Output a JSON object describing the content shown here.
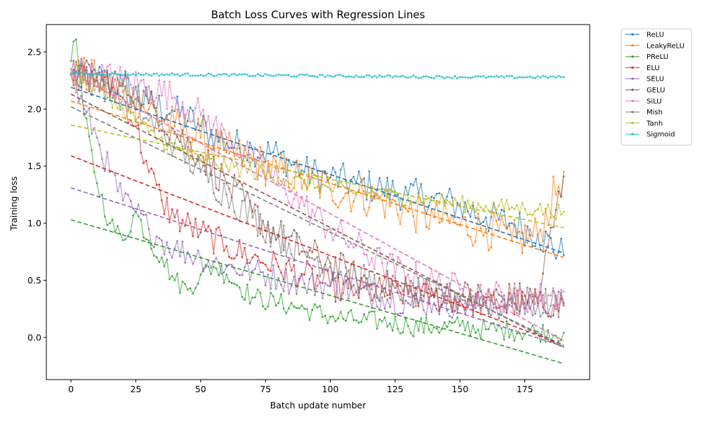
{
  "chart_data": {
    "type": "line",
    "title": "Batch Loss Curves with Regression Lines",
    "xlabel": "Batch update number",
    "ylabel": "Training loss",
    "xlim": [
      -9.5,
      200
    ],
    "ylim": [
      -0.37,
      2.74
    ],
    "xticks": [
      0,
      25,
      50,
      75,
      100,
      125,
      150,
      175
    ],
    "yticks": [
      0.0,
      0.5,
      1.0,
      1.5,
      2.0,
      2.5
    ],
    "ytick_labels": [
      "0.0",
      "0.5",
      "1.0",
      "1.5",
      "2.0",
      "2.5"
    ],
    "grid": false,
    "legend_position": "outside-top-right",
    "x_max": 190,
    "series": [
      {
        "name": "ReLU",
        "color": "#1f77b4",
        "points": [
          [
            0,
            2.3
          ],
          [
            10,
            2.28
          ],
          [
            20,
            2.2
          ],
          [
            30,
            2.05
          ],
          [
            40,
            1.98
          ],
          [
            50,
            1.85
          ],
          [
            60,
            1.7
          ],
          [
            70,
            1.65
          ],
          [
            80,
            1.6
          ],
          [
            90,
            1.45
          ],
          [
            100,
            1.4
          ],
          [
            110,
            1.35
          ],
          [
            120,
            1.3
          ],
          [
            130,
            1.25
          ],
          [
            140,
            1.22
          ],
          [
            150,
            1.15
          ],
          [
            160,
            1.05
          ],
          [
            170,
            1.0
          ],
          [
            180,
            0.9
          ],
          [
            190,
            0.72
          ]
        ],
        "noise": 0.15,
        "regression": [
          2.19,
          0.74
        ]
      },
      {
        "name": "LeakyReLU",
        "color": "#ff7f0e",
        "points": [
          [
            0,
            2.3
          ],
          [
            10,
            2.25
          ],
          [
            20,
            2.15
          ],
          [
            30,
            2.0
          ],
          [
            40,
            1.85
          ],
          [
            50,
            1.75
          ],
          [
            60,
            1.62
          ],
          [
            70,
            1.55
          ],
          [
            80,
            1.45
          ],
          [
            90,
            1.38
          ],
          [
            100,
            1.3
          ],
          [
            110,
            1.25
          ],
          [
            120,
            1.2
          ],
          [
            130,
            1.1
          ],
          [
            140,
            1.05
          ],
          [
            150,
            0.98
          ],
          [
            160,
            0.95
          ],
          [
            170,
            0.85
          ],
          [
            180,
            0.9
          ],
          [
            190,
            1.45
          ]
        ],
        "noise": 0.18,
        "regression": [
          2.07,
          0.7
        ]
      },
      {
        "name": "PReLU",
        "color": "#2ca02c",
        "points": [
          [
            0,
            2.42
          ],
          [
            2,
            2.61
          ],
          [
            5,
            1.95
          ],
          [
            10,
            1.35
          ],
          [
            15,
            1.0
          ],
          [
            20,
            0.85
          ],
          [
            25,
            1.1
          ],
          [
            30,
            0.85
          ],
          [
            35,
            0.7
          ],
          [
            40,
            0.5
          ],
          [
            45,
            0.42
          ],
          [
            50,
            0.55
          ],
          [
            55,
            0.62
          ],
          [
            60,
            0.55
          ],
          [
            70,
            0.35
          ],
          [
            80,
            0.3
          ],
          [
            90,
            0.25
          ],
          [
            100,
            0.18
          ],
          [
            110,
            0.15
          ],
          [
            120,
            0.14
          ],
          [
            130,
            0.1
          ],
          [
            140,
            0.09
          ],
          [
            150,
            0.1
          ],
          [
            160,
            0.07
          ],
          [
            170,
            0.06
          ],
          [
            180,
            0.05
          ],
          [
            190,
            0.04
          ]
        ],
        "noise": 0.09,
        "regression": [
          1.03,
          -0.23
        ]
      },
      {
        "name": "ELU",
        "color": "#d62728",
        "points": [
          [
            0,
            2.3
          ],
          [
            10,
            2.25
          ],
          [
            20,
            2.1
          ],
          [
            25,
            1.85
          ],
          [
            30,
            1.45
          ],
          [
            35,
            1.2
          ],
          [
            40,
            1.05
          ],
          [
            50,
            0.92
          ],
          [
            60,
            0.8
          ],
          [
            70,
            0.7
          ],
          [
            80,
            0.62
          ],
          [
            90,
            0.55
          ],
          [
            100,
            0.45
          ],
          [
            110,
            0.4
          ],
          [
            120,
            0.4
          ],
          [
            130,
            0.38
          ],
          [
            140,
            0.35
          ],
          [
            150,
            0.32
          ],
          [
            160,
            0.3
          ],
          [
            170,
            0.3
          ],
          [
            180,
            0.3
          ],
          [
            190,
            0.28
          ]
        ],
        "noise": 0.13,
        "regression": [
          1.59,
          -0.07
        ]
      },
      {
        "name": "SELU",
        "color": "#9467bd",
        "points": [
          [
            0,
            2.3
          ],
          [
            5,
            2.0
          ],
          [
            10,
            1.75
          ],
          [
            15,
            1.45
          ],
          [
            20,
            1.2
          ],
          [
            25,
            1.1
          ],
          [
            30,
            0.95
          ],
          [
            35,
            0.85
          ],
          [
            40,
            0.78
          ],
          [
            50,
            0.7
          ],
          [
            60,
            0.62
          ],
          [
            70,
            0.58
          ],
          [
            80,
            0.52
          ],
          [
            90,
            0.47
          ],
          [
            100,
            0.45
          ],
          [
            110,
            0.4
          ],
          [
            120,
            0.35
          ],
          [
            130,
            0.3
          ],
          [
            140,
            0.3
          ],
          [
            150,
            0.28
          ],
          [
            160,
            0.28
          ],
          [
            170,
            0.27
          ],
          [
            180,
            0.28
          ],
          [
            190,
            0.3
          ]
        ],
        "noise": 0.12,
        "regression": [
          1.31,
          -0.08
        ]
      },
      {
        "name": "GELU",
        "color": "#8c564b",
        "points": [
          [
            0,
            2.3
          ],
          [
            10,
            2.28
          ],
          [
            20,
            2.22
          ],
          [
            30,
            2.05
          ],
          [
            40,
            1.8
          ],
          [
            50,
            1.6
          ],
          [
            60,
            1.35
          ],
          [
            70,
            1.1
          ],
          [
            80,
            0.9
          ],
          [
            90,
            0.75
          ],
          [
            100,
            0.65
          ],
          [
            110,
            0.52
          ],
          [
            120,
            0.45
          ],
          [
            130,
            0.4
          ],
          [
            140,
            0.38
          ],
          [
            150,
            0.36
          ],
          [
            160,
            0.35
          ],
          [
            170,
            0.34
          ],
          [
            180,
            0.34
          ],
          [
            190,
            1.41
          ]
        ],
        "noise": 0.15,
        "regression": [
          2.13,
          -0.09
        ]
      },
      {
        "name": "SiLU",
        "color": "#e377c2",
        "points": [
          [
            0,
            2.35
          ],
          [
            10,
            2.3
          ],
          [
            20,
            2.25
          ],
          [
            30,
            2.2
          ],
          [
            40,
            2.1
          ],
          [
            50,
            1.95
          ],
          [
            60,
            1.75
          ],
          [
            70,
            1.55
          ],
          [
            80,
            1.35
          ],
          [
            90,
            1.15
          ],
          [
            100,
            0.95
          ],
          [
            110,
            0.8
          ],
          [
            120,
            0.65
          ],
          [
            130,
            0.55
          ],
          [
            140,
            0.48
          ],
          [
            150,
            0.42
          ],
          [
            160,
            0.38
          ],
          [
            170,
            0.35
          ],
          [
            180,
            0.35
          ],
          [
            190,
            0.4
          ]
        ],
        "noise": 0.14,
        "regression": [
          2.32,
          -0.03
        ]
      },
      {
        "name": "Mish",
        "color": "#7f7f7f",
        "points": [
          [
            0,
            2.3
          ],
          [
            10,
            2.25
          ],
          [
            20,
            2.1
          ],
          [
            30,
            1.9
          ],
          [
            40,
            1.7
          ],
          [
            50,
            1.45
          ],
          [
            60,
            1.25
          ],
          [
            70,
            1.05
          ],
          [
            80,
            0.88
          ],
          [
            90,
            0.75
          ],
          [
            100,
            0.62
          ],
          [
            110,
            0.52
          ],
          [
            120,
            0.45
          ],
          [
            130,
            0.4
          ],
          [
            140,
            0.36
          ],
          [
            150,
            0.34
          ],
          [
            160,
            0.32
          ],
          [
            170,
            0.3
          ],
          [
            180,
            0.3
          ],
          [
            190,
            0.3
          ]
        ],
        "noise": 0.14,
        "regression": [
          2.02,
          -0.07
        ]
      },
      {
        "name": "Tanh",
        "color": "#bcbd22",
        "points": [
          [
            0,
            2.3
          ],
          [
            10,
            2.2
          ],
          [
            20,
            2.0
          ],
          [
            30,
            1.8
          ],
          [
            40,
            1.65
          ],
          [
            50,
            1.55
          ],
          [
            60,
            1.5
          ],
          [
            70,
            1.45
          ],
          [
            80,
            1.4
          ],
          [
            90,
            1.35
          ],
          [
            100,
            1.3
          ],
          [
            110,
            1.27
          ],
          [
            120,
            1.25
          ],
          [
            130,
            1.22
          ],
          [
            140,
            1.2
          ],
          [
            150,
            1.17
          ],
          [
            160,
            1.15
          ],
          [
            170,
            1.14
          ],
          [
            180,
            1.12
          ],
          [
            190,
            1.1
          ]
        ],
        "noise": 0.07,
        "regression": [
          1.86,
          0.96
        ]
      },
      {
        "name": "Sigmoid",
        "color": "#17becf",
        "points": [
          [
            0,
            2.31
          ],
          [
            50,
            2.3
          ],
          [
            100,
            2.29
          ],
          [
            150,
            2.28
          ],
          [
            190,
            2.28
          ]
        ],
        "noise": 0.012,
        "regression": null
      }
    ]
  }
}
